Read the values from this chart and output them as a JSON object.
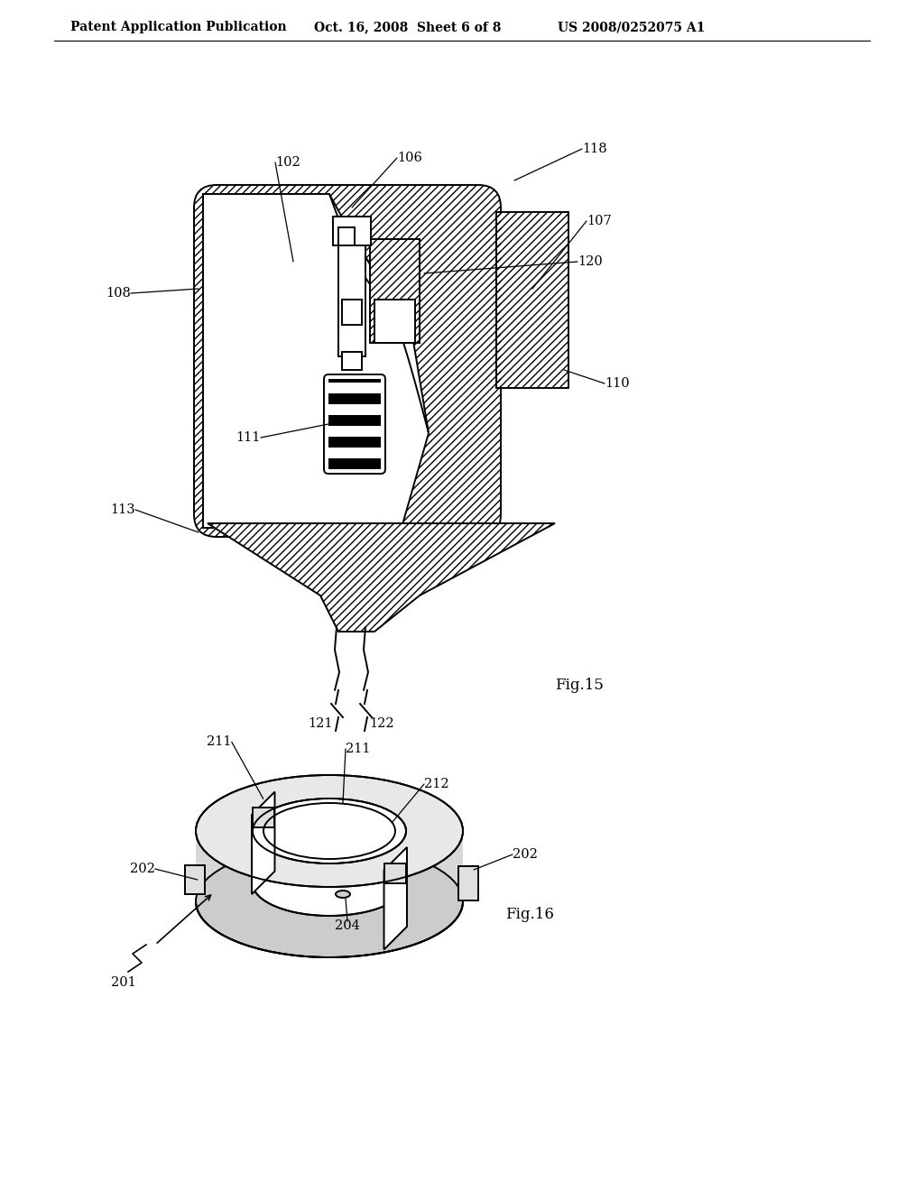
{
  "bg_color": "#ffffff",
  "lc": "#000000",
  "header_left": "Patent Application Publication",
  "header_mid": "Oct. 16, 2008  Sheet 6 of 8",
  "header_right": "US 2008/0252075 A1",
  "fig15_label": "Fig.15",
  "fig16_label": "Fig.16"
}
